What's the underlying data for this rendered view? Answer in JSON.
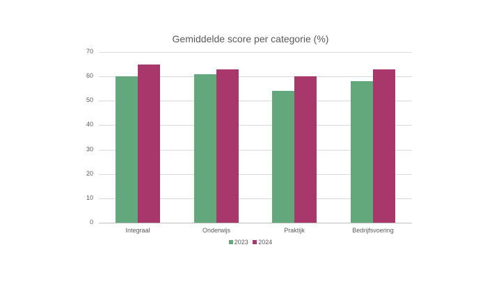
{
  "chart_data": {
    "type": "bar",
    "title": "Gemiddelde score per categorie (%)",
    "categories": [
      "Integraal",
      "Onderwijs",
      "Praktijk",
      "Bedrijfsvoering"
    ],
    "series": [
      {
        "name": "2023",
        "values": [
          60,
          61,
          54,
          58
        ],
        "color": "#62a87c"
      },
      {
        "name": "2024",
        "values": [
          65,
          63,
          60,
          63
        ],
        "color": "#a8386c"
      }
    ],
    "xlabel": "",
    "ylabel": "",
    "ylim": [
      0,
      70
    ],
    "yticks": [
      "0",
      "10",
      "20",
      "30",
      "40",
      "50",
      "60",
      "70"
    ],
    "grid": true,
    "legend_position": "bottom"
  }
}
